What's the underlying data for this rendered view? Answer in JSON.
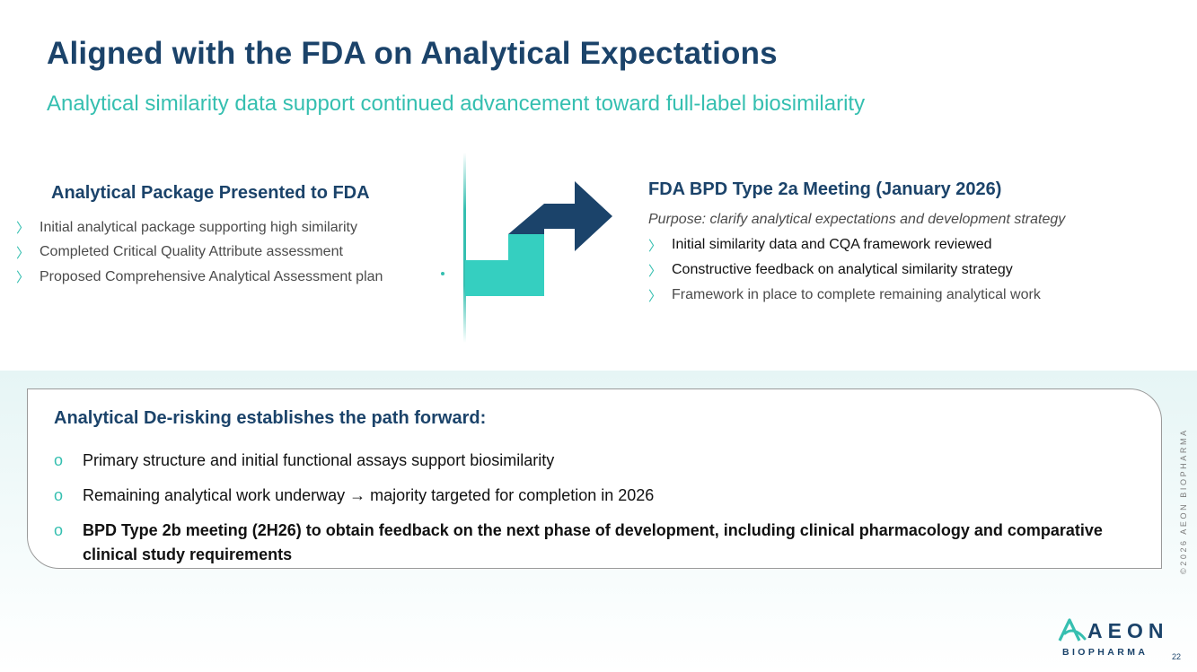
{
  "slide": {
    "title": "Aligned with the FDA on Analytical Expectations",
    "subtitle": "Analytical similarity data support continued advancement toward full-label biosimilarity"
  },
  "left_panel": {
    "heading": "Analytical Package Presented to FDA",
    "bullet_glyph": "〉",
    "items": [
      "Initial analytical package supporting high similarity",
      "Completed Critical Quality Attribute assessment",
      "Proposed Comprehensive Analytical Assessment plan"
    ]
  },
  "right_panel": {
    "heading": "FDA BPD Type 2a Meeting (January 2026)",
    "purpose": "Purpose:  clarify analytical expectations and development strategy",
    "bullet_glyph": "〉",
    "items": [
      "Initial similarity data and CQA framework reviewed",
      "Constructive feedback on analytical similarity strategy",
      "Framework in place to complete remaining analytical work"
    ]
  },
  "summary_box": {
    "heading": "Analytical De-risking establishes the path forward:",
    "bullet_glyph": "o",
    "items": [
      "Primary structure and initial functional assays support biosimilarity",
      "Remaining analytical work underway → majority targeted for completion in 2026",
      "BPD Type 2b meeting (2H26) to obtain feedback on the next phase of development, including clinical pharmacology and comparative clinical study requirements"
    ]
  },
  "footer": {
    "copyright": "©2026 AEON BIOPHARMA",
    "logo_word": "AEON",
    "logo_sub": "BIOPHARMA",
    "page_number": "22"
  },
  "colors": {
    "navy": "#1b436a",
    "teal": "#35bfb0",
    "text": "#4b4b4b"
  },
  "icons": {
    "transition_arrow": "step-arrow-icon",
    "logo_mark": "aeon-a-logo-icon"
  }
}
